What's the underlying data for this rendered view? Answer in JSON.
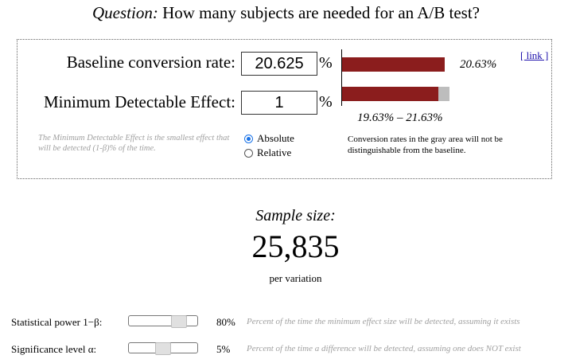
{
  "question": {
    "label": "Question:",
    "text": "How many subjects are needed for an A/B test?"
  },
  "link_label": "[ link ]",
  "baseline": {
    "label": "Baseline conversion rate:",
    "value": "20.625",
    "unit": "%",
    "bar_value": "20.63%"
  },
  "mde": {
    "label": "Minimum Detectable Effect:",
    "value": "1",
    "unit": "%",
    "range_text": "19.63% – 21.63%"
  },
  "mde_note": "The Minimum Detectable Effect is the smallest effect that will be detected (1-β)% of the time.",
  "mode": {
    "options": [
      "Absolute",
      "Relative"
    ],
    "selected": "Absolute"
  },
  "gray_note": "Conversion rates in the gray area will not be distinguishable from the baseline.",
  "result": {
    "label": "Sample size:",
    "value": "25,835",
    "unit": "per variation"
  },
  "power": {
    "label": "Statistical power 1−β:",
    "value": "80%",
    "position": 0.8,
    "note": "Percent of the time the minimum effect size will be detected, assuming it exists"
  },
  "significance": {
    "label": "Significance level α:",
    "value": "5%",
    "position": 0.5,
    "note": "Percent of the time a difference will be detected, assuming one does NOT exist"
  },
  "colors": {
    "bar": "#8b1d1d",
    "gray": "#bdbdbd",
    "link": "#1a0dab",
    "note": "#a0a0a0"
  }
}
